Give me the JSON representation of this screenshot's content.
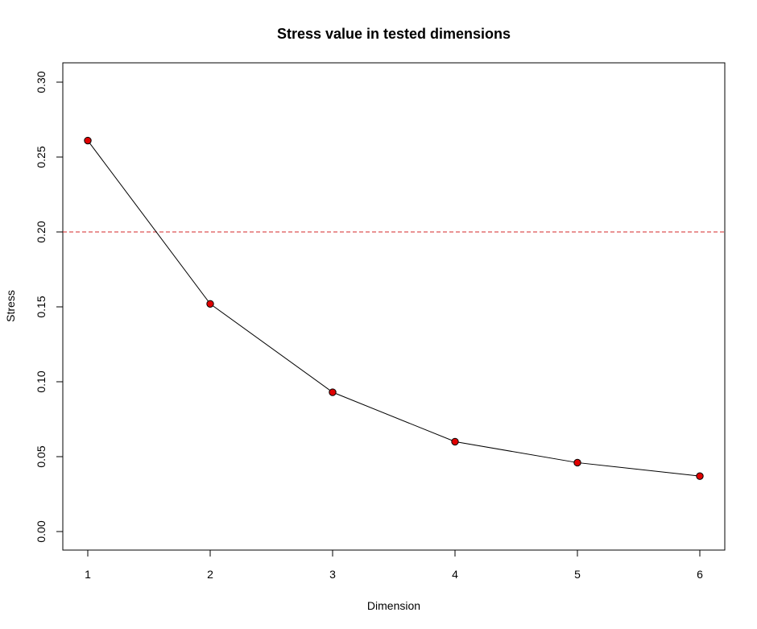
{
  "chart_data": {
    "type": "line",
    "title": "Stress value in tested dimensions",
    "xlabel": "Dimension",
    "ylabel": "Stress",
    "x": [
      1,
      2,
      3,
      4,
      5,
      6
    ],
    "y": [
      0.261,
      0.152,
      0.093,
      0.06,
      0.046,
      0.037
    ],
    "xlim": [
      1,
      6
    ],
    "ylim": [
      0,
      0.3
    ],
    "xticks": [
      "1",
      "2",
      "3",
      "4",
      "5",
      "6"
    ],
    "yticks": [
      "0.00",
      "0.05",
      "0.10",
      "0.15",
      "0.20",
      "0.25",
      "0.30"
    ],
    "reference_line": {
      "y": 0.2,
      "style": "dashed",
      "color": "#d62728"
    },
    "marker_color": "#e00000",
    "marker_edge_color": "#000000",
    "line_color": "#000000",
    "grid": false,
    "legend": "none"
  }
}
